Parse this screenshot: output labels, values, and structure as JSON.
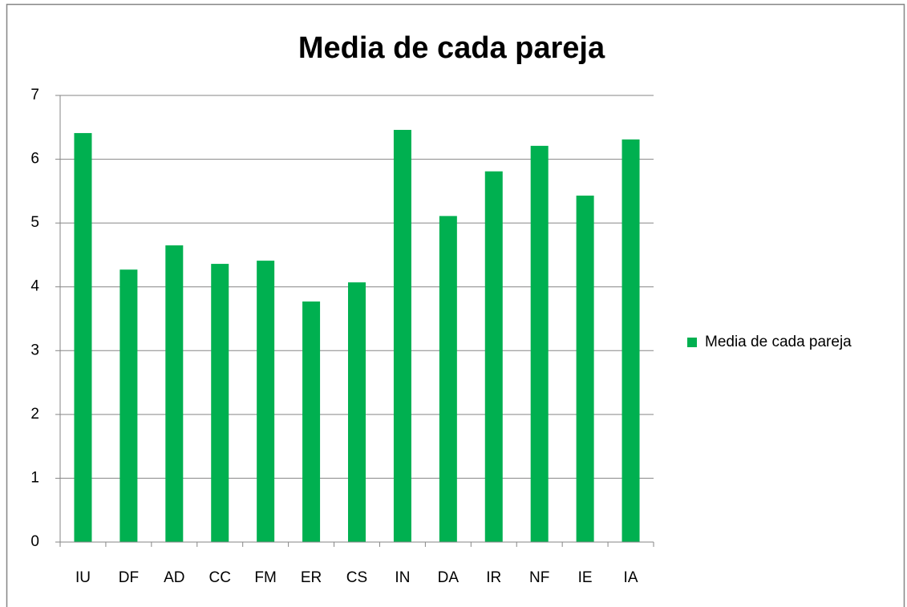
{
  "chart_data": {
    "type": "bar",
    "title": "Media de cada pareja",
    "categories": [
      "IU",
      "DF",
      "AD",
      "CC",
      "FM",
      "ER",
      "CS",
      "IN",
      "DA",
      "IR",
      "NF",
      "IE",
      "IA"
    ],
    "series": [
      {
        "name": "Media de cada pareja",
        "color": "#00b050",
        "values": [
          6.41,
          4.27,
          4.65,
          4.36,
          4.41,
          3.77,
          4.07,
          6.46,
          5.11,
          5.81,
          6.21,
          5.43,
          6.31
        ]
      }
    ],
    "ylim": [
      0,
      7
    ],
    "yticks": [
      0,
      1,
      2,
      3,
      4,
      5,
      6,
      7
    ],
    "grid": true,
    "legend": "right"
  }
}
